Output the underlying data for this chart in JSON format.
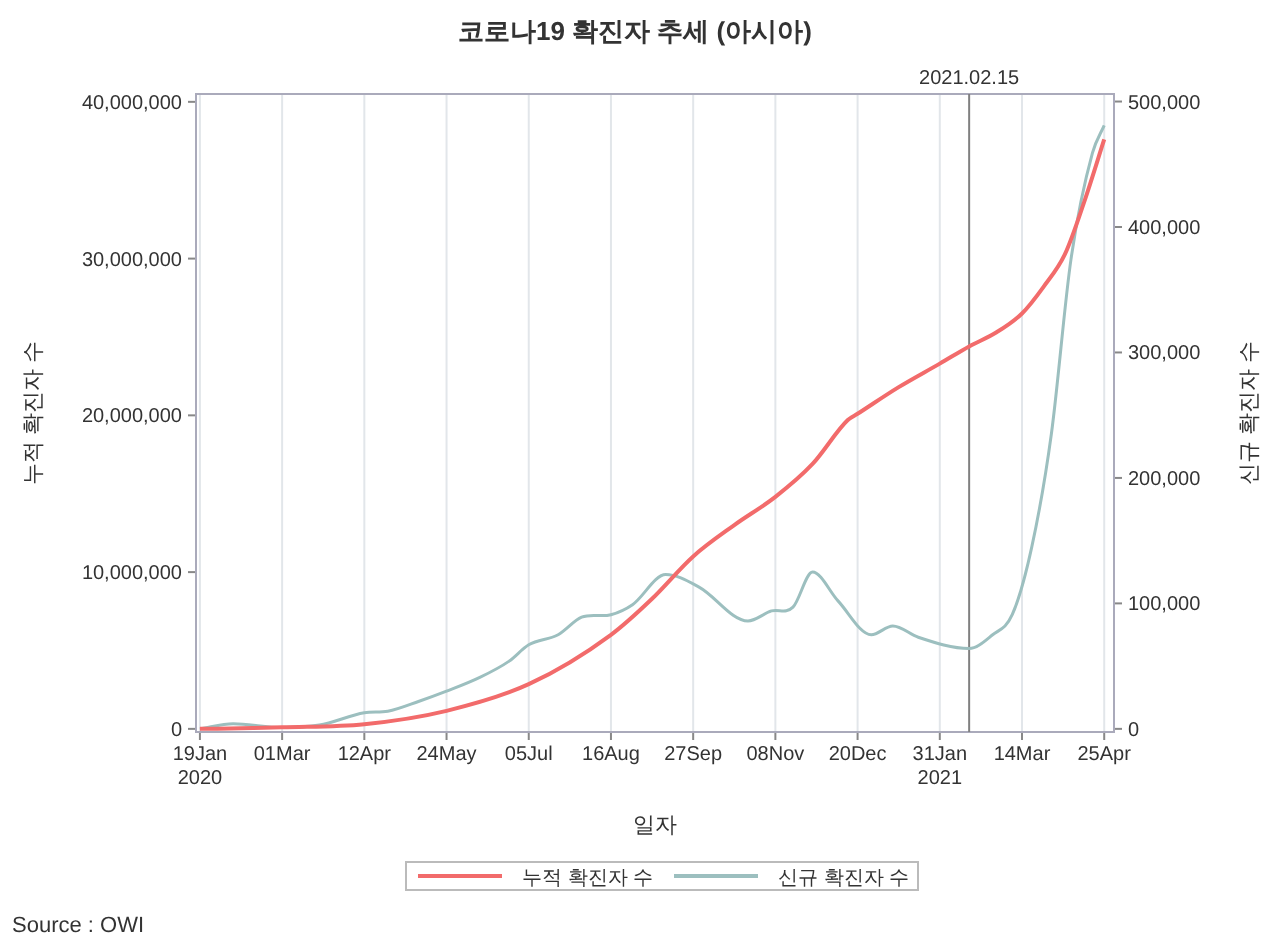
{
  "chart_data": {
    "type": "line",
    "title": "코로나19 확진자 추세 (아시아)",
    "xlabel": "일자",
    "ylabel": "누적 확진자 수",
    "y2label": "신규 확진자 수",
    "annotations": [
      "Source : OWI"
    ],
    "grid": "x",
    "legend": "bottom",
    "marker": "none",
    "line_style": "solid",
    "xlim": [
      "2020-01-17",
      "2021-04-30"
    ],
    "xticks": [
      {
        "value": "2020-01-19",
        "label": "19Jan\n2020"
      },
      {
        "value": "2020-03-01",
        "label": "01Mar"
      },
      {
        "value": "2020-04-12",
        "label": "12Apr"
      },
      {
        "value": "2020-05-24",
        "label": "24May"
      },
      {
        "value": "2020-07-05",
        "label": "05Jul"
      },
      {
        "value": "2020-08-16",
        "label": "16Aug"
      },
      {
        "value": "2020-09-27",
        "label": "27Sep"
      },
      {
        "value": "2020-11-08",
        "label": "08Nov"
      },
      {
        "value": "2020-12-20",
        "label": "20Dec"
      },
      {
        "value": "2021-01-31",
        "label": "31Jan\n2021"
      },
      {
        "value": "2021-03-14",
        "label": "14Mar"
      },
      {
        "value": "2021-04-25",
        "label": "25Apr"
      }
    ],
    "ylim": [
      -200000,
      40500000
    ],
    "yticks": [
      {
        "value": 0,
        "label": "0"
      },
      {
        "value": 10000000,
        "label": "10,000,000"
      },
      {
        "value": 20000000,
        "label": "20,000,000"
      },
      {
        "value": 30000000,
        "label": "30,000,000"
      },
      {
        "value": 40000000,
        "label": "40,000,000"
      }
    ],
    "y2lim": [
      -2500,
      506000
    ],
    "y2ticks": [
      {
        "value": 0,
        "label": "0"
      },
      {
        "value": 100000,
        "label": "100,000"
      },
      {
        "value": 200000,
        "label": "200,000"
      },
      {
        "value": 300000,
        "label": "300,000"
      },
      {
        "value": 400000,
        "label": "400,000"
      },
      {
        "value": 500000,
        "label": "500,000"
      }
    ],
    "ref_lines": [
      {
        "axis": "x",
        "value": "2021-02-15",
        "label": "2021.02.15",
        "color": "#808080"
      }
    ],
    "series": [
      {
        "name": "누적 확진자 수",
        "color": "#f26b6b",
        "x": [
          "2020-01-19",
          "2020-02-15",
          "2020-03-01",
          "2020-04-12",
          "2020-05-24",
          "2020-07-05",
          "2020-08-16",
          "2020-09-06",
          "2020-09-27",
          "2020-10-18",
          "2020-11-08",
          "2020-11-27",
          "2020-12-15",
          "2020-12-20",
          "2021-01-10",
          "2021-01-31",
          "2021-02-15",
          "2021-03-01",
          "2021-03-14",
          "2021-03-25",
          "2021-04-05",
          "2021-04-15",
          "2021-04-25"
        ],
        "values": [
          0,
          50000,
          100000,
          300000,
          1150000,
          2850000,
          6000000,
          8300000,
          11000000,
          13000000,
          14800000,
          16900000,
          19700000,
          20100000,
          21800000,
          23300000,
          24400000,
          25300000,
          26500000,
          28200000,
          30300000,
          33700000,
          37600000
        ]
      },
      {
        "name": "신규 확진자 수",
        "color": "#9cbfbf",
        "axis": "y2",
        "x": [
          "2020-01-19",
          "2020-02-05",
          "2020-03-01",
          "2020-03-20",
          "2020-04-12",
          "2020-04-24",
          "2020-05-10",
          "2020-05-24",
          "2020-06-10",
          "2020-06-25",
          "2020-07-05",
          "2020-07-20",
          "2020-08-01",
          "2020-08-16",
          "2020-08-27",
          "2020-09-13",
          "2020-09-30",
          "2020-10-25",
          "2020-11-06",
          "2020-11-17",
          "2020-11-27",
          "2020-12-10",
          "2020-12-27",
          "2021-01-07",
          "2021-01-20",
          "2021-02-15",
          "2021-02-27",
          "2021-03-09",
          "2021-03-19",
          "2021-03-29",
          "2021-04-08",
          "2021-04-19",
          "2021-04-25"
        ],
        "values": [
          0,
          4000,
          1000,
          3000,
          12800,
          14000,
          22000,
          30000,
          41000,
          54000,
          67000,
          75000,
          89000,
          91000,
          99000,
          123000,
          113000,
          86000,
          94000,
          97000,
          125000,
          102000,
          75000,
          82000,
          73000,
          64000,
          75000,
          91000,
          145000,
          235000,
          374000,
          459000,
          481000
        ]
      }
    ]
  }
}
